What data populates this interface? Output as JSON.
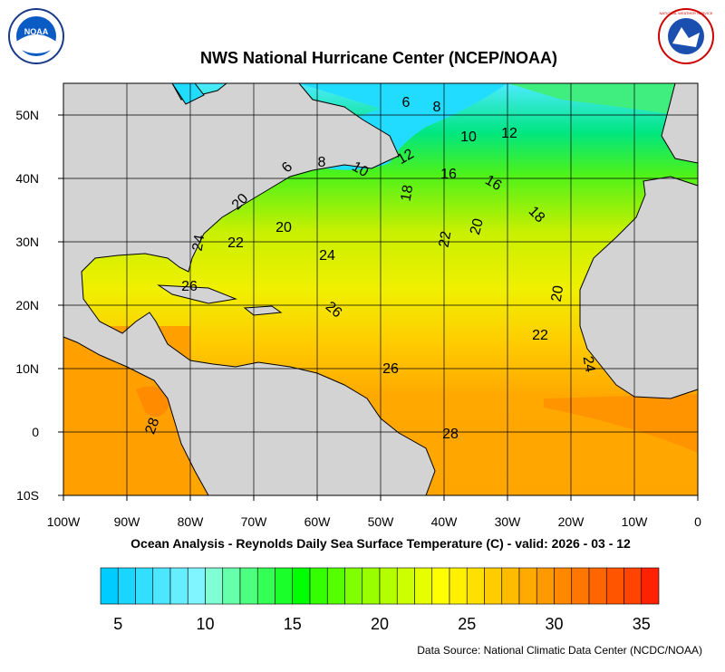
{
  "header": {
    "title": "NWS National Hurricane Center (NCEP/NOAA)",
    "noaa_logo": "NOAA",
    "nws_logo": "NATIONAL WEATHER SERVICE"
  },
  "map": {
    "lon_labels": [
      "100W",
      "90W",
      "80W",
      "70W",
      "60W",
      "50W",
      "40W",
      "30W",
      "20W",
      "10W",
      "0"
    ],
    "lat_labels": [
      "50N",
      "40N",
      "30N",
      "20N",
      "10N",
      "0",
      "10S"
    ],
    "contour_labels": [
      "6",
      "8",
      "10",
      "12",
      "12",
      "6",
      "8",
      "10",
      "16",
      "16",
      "18",
      "18",
      "20",
      "20",
      "22",
      "24",
      "20",
      "22",
      "24",
      "26",
      "26",
      "20",
      "22",
      "26",
      "24",
      "28",
      "28"
    ]
  },
  "subtitle": "Ocean Analysis - Reynolds Daily Sea Surface Temperature (C) - valid: 2026 - 03 - 12",
  "colorbar": {
    "min": 4,
    "max": 36,
    "labels": [
      5,
      10,
      15,
      20,
      25,
      30,
      35
    ],
    "colors": [
      "#00ccff",
      "#1ad6ff",
      "#33dfff",
      "#4de6ff",
      "#66eeff",
      "#80f5ff",
      "#80ffd4",
      "#66ffaa",
      "#4dff80",
      "#33ff55",
      "#1aff2a",
      "#00ff00",
      "#33ff00",
      "#55ff00",
      "#80ff00",
      "#99ff00",
      "#b3ff00",
      "#ccff00",
      "#e6ff00",
      "#ffff00",
      "#fff000",
      "#ffe000",
      "#ffcc00",
      "#ffbb00",
      "#ffaa00",
      "#ff9900",
      "#ff8800",
      "#ff7700",
      "#ff6600",
      "#ff5500",
      "#ff4400",
      "#ff2200"
    ]
  },
  "source": "Data Source: National Climatic Data Center (NCDC/NOAA)"
}
